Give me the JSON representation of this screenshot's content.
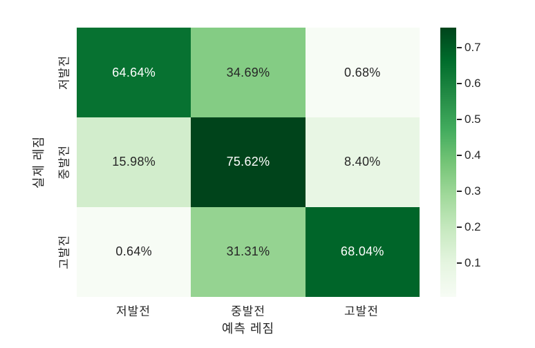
{
  "chart_data": {
    "type": "heatmap",
    "colormap": "Greens",
    "xlabel": "예측 레짐",
    "ylabel": "실제 레짐",
    "x_categories": [
      "저발전",
      "중발전",
      "고발전"
    ],
    "y_categories": [
      "저발전",
      "중발전",
      "고발전"
    ],
    "values_percent": [
      [
        64.64,
        34.69,
        0.68
      ],
      [
        15.98,
        75.62,
        8.4
      ],
      [
        0.64,
        31.31,
        68.04
      ]
    ],
    "cell_labels": [
      [
        "64.64%",
        "34.69%",
        "0.68%"
      ],
      [
        "15.98%",
        "75.62%",
        "8.40%"
      ],
      [
        "0.64%",
        "31.31%",
        "68.04%"
      ]
    ],
    "cell_colors": [
      [
        "#077231",
        "#84cc84",
        "#f7fcf5"
      ],
      [
        "#d2edcc",
        "#00441b",
        "#e8f6e4"
      ],
      [
        "#f7fcf5",
        "#95d391",
        "#006529"
      ]
    ],
    "cell_text_colors": [
      [
        "#ffffff",
        "#262626",
        "#262626"
      ],
      [
        "#262626",
        "#ffffff",
        "#262626"
      ],
      [
        "#262626",
        "#95d391",
        "#ffffff"
      ]
    ],
    "text_color": "#262626",
    "background_color": "#ffffff",
    "colorbar": {
      "vmin": 0.0064,
      "vmax": 0.7562,
      "ticks": [
        0.7,
        0.6,
        0.5,
        0.4,
        0.3,
        0.2,
        0.1
      ],
      "tick_labels": [
        "0.7",
        "0.6",
        "0.5",
        "0.4",
        "0.3",
        "0.2",
        "0.1"
      ],
      "gradient_stops_bottom_to_top": [
        "#f7fcf5",
        "#e5f5e0",
        "#c7e9c0",
        "#a1d99b",
        "#74c476",
        "#41ab5d",
        "#238b45",
        "#006d2c",
        "#00441b"
      ]
    }
  }
}
